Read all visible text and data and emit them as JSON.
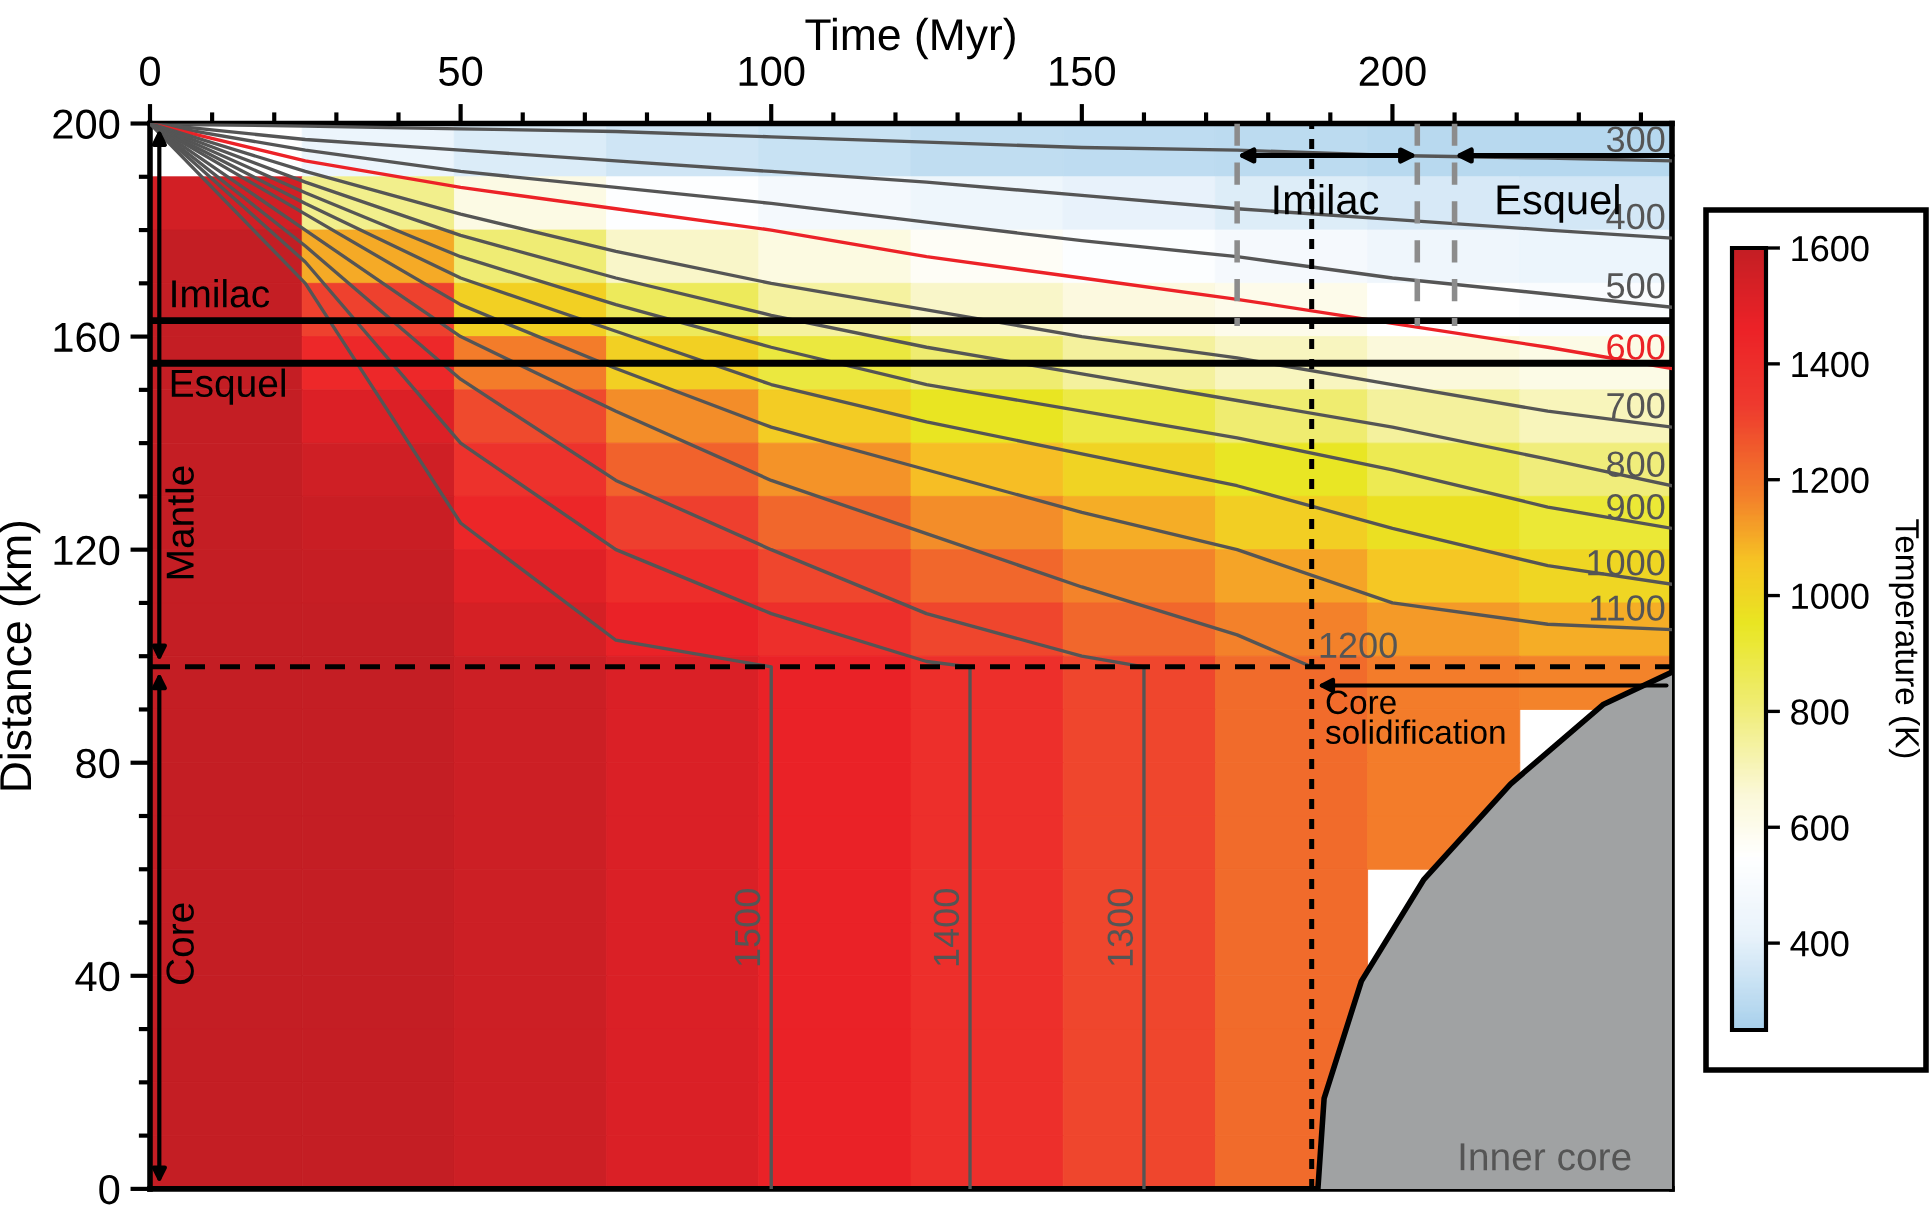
{
  "chart_data": {
    "type": "heatmap",
    "xlabel": "Time (Myr)",
    "ylabel": "Distance (km)",
    "clabel": "Temperature (K)",
    "xlim": [
      0,
      245
    ],
    "ylim": [
      0,
      200
    ],
    "xticks": [
      0,
      {
        "value": 10,
        "label": null
      },
      {
        "value": 20,
        "label": null
      },
      {
        "value": 30,
        "label": null
      },
      {
        "value": 40,
        "label": null
      },
      50,
      {
        "value": 60,
        "label": null
      },
      {
        "value": 70,
        "label": null
      },
      {
        "value": 80,
        "label": null
      },
      {
        "value": 90,
        "label": null
      },
      100,
      {
        "value": 110,
        "label": null
      },
      {
        "value": 120,
        "label": null
      },
      {
        "value": 130,
        "label": null
      },
      {
        "value": 140,
        "label": null
      },
      150,
      {
        "value": 160,
        "label": null
      },
      {
        "value": 170,
        "label": null
      },
      {
        "value": 180,
        "label": null
      },
      {
        "value": 190,
        "label": null
      },
      200,
      {
        "value": 210,
        "label": null
      },
      {
        "value": 220,
        "label": null
      },
      {
        "value": 230,
        "label": null
      },
      {
        "value": 240,
        "label": null
      }
    ],
    "yticks": [
      0,
      {
        "value": 10,
        "label": null
      },
      {
        "value": 20,
        "label": null
      },
      {
        "value": 30,
        "label": null
      },
      40,
      {
        "value": 50,
        "label": null
      },
      {
        "value": 60,
        "label": null
      },
      {
        "value": 70,
        "label": null
      },
      80,
      {
        "value": 90,
        "label": null
      },
      {
        "value": 100,
        "label": null
      },
      {
        "value": 110,
        "label": null
      },
      120,
      {
        "value": 130,
        "label": null
      },
      {
        "value": 140,
        "label": null
      },
      {
        "value": 150,
        "label": null
      },
      160,
      {
        "value": 170,
        "label": null
      },
      {
        "value": 180,
        "label": null
      },
      {
        "value": 190,
        "label": null
      },
      200
    ],
    "clim": [
      250,
      1600
    ],
    "cticks": [
      400,
      600,
      800,
      1000,
      1200,
      1400,
      1600
    ],
    "x": [
      12.25,
      36.75,
      61.25,
      85.75,
      110.25,
      134.75,
      159.25,
      183.75,
      208.25,
      232.75
    ],
    "y": [
      195,
      185,
      175,
      165,
      155,
      145,
      135,
      125,
      115,
      105,
      95,
      85,
      75,
      65,
      55,
      45,
      35,
      25,
      15,
      5
    ],
    "cells": [
      [
        null,
        430,
        380,
        350,
        330,
        310,
        305,
        300,
        290,
        285
      ],
      [
        1550,
        775,
        620,
        540,
        480,
        440,
        410,
        385,
        370,
        360
      ],
      [
        1600,
        1100,
        810,
        680,
        630,
        575,
        530,
        485,
        455,
        430
      ],
      [
        1600,
        1310,
        1020,
        855,
        745,
        680,
        640,
        605,
        550,
        515
      ],
      [
        1600,
        1430,
        1180,
        1020,
        900,
        815,
        750,
        695,
        650,
        615
      ],
      [
        1600,
        1520,
        1290,
        1150,
        1035,
        955,
        890,
        815,
        750,
        700
      ],
      [
        1600,
        1560,
        1370,
        1240,
        1140,
        1070,
        1010,
        950,
        870,
        800
      ],
      [
        1600,
        1580,
        1440,
        1320,
        1230,
        1150,
        1095,
        1030,
        970,
        915
      ],
      [
        1600,
        1590,
        1500,
        1400,
        1300,
        1230,
        1165,
        1110,
        1050,
        1000
      ],
      [
        1600,
        1600,
        1540,
        1470,
        1390,
        1300,
        1230,
        1170,
        1130,
        1095
      ],
      [
        1600,
        1600,
        1570,
        1525,
        1470,
        1390,
        1300,
        1220,
        1180,
        1165
      ],
      [
        1600,
        1600,
        1570,
        1525,
        1470,
        1390,
        1300,
        1220,
        1180,
        null
      ],
      [
        1600,
        1600,
        1570,
        1525,
        1470,
        1390,
        1300,
        1220,
        1180,
        null
      ],
      [
        1600,
        1600,
        1570,
        1525,
        1470,
        1390,
        1300,
        1220,
        1180,
        null
      ],
      [
        1600,
        1600,
        1570,
        1525,
        1470,
        1390,
        1300,
        1220,
        null,
        null
      ],
      [
        1600,
        1600,
        1570,
        1525,
        1470,
        1390,
        1300,
        1220,
        null,
        null
      ],
      [
        1600,
        1600,
        1570,
        1525,
        1470,
        1390,
        1300,
        1220,
        null,
        null
      ],
      [
        1600,
        1600,
        1570,
        1525,
        1470,
        1390,
        1300,
        1220,
        null,
        null
      ],
      [
        1600,
        1600,
        1570,
        1525,
        1470,
        1390,
        1300,
        1220,
        null,
        null
      ],
      [
        1600,
        1600,
        1570,
        1525,
        1470,
        1390,
        1300,
        1220,
        null,
        null
      ]
    ],
    "series": [
      {
        "type": "line",
        "name": "300",
        "color": "#555555",
        "x": [
          0,
          25,
          50,
          75,
          100,
          125,
          150,
          175,
          200,
          225,
          245
        ],
        "values": [
          200,
          199.5,
          199,
          198.5,
          197.5,
          196.5,
          195.5,
          195,
          194,
          193.5,
          193
        ]
      },
      {
        "type": "line",
        "name": "400",
        "color": "#555555",
        "x": [
          0,
          25,
          50,
          75,
          100,
          125,
          150,
          175,
          200,
          225,
          245
        ],
        "values": [
          200,
          197,
          195,
          193,
          191,
          189,
          186.5,
          184,
          182,
          180,
          178.5
        ]
      },
      {
        "type": "line",
        "name": "500",
        "color": "#555555",
        "x": [
          0,
          25,
          50,
          75,
          100,
          125,
          150,
          175,
          200,
          225,
          245
        ],
        "values": [
          200,
          195,
          191,
          188,
          185,
          181.5,
          178,
          175,
          171,
          168,
          165.5
        ]
      },
      {
        "type": "line",
        "name": "600",
        "color": "#ec2227",
        "x": [
          0,
          25,
          50,
          75,
          100,
          125,
          150,
          175,
          200,
          225,
          245
        ],
        "values": [
          200,
          193,
          188,
          184,
          180,
          175,
          171,
          167,
          162.5,
          158,
          154
        ]
      },
      {
        "type": "line",
        "name": "700",
        "color": "#555555",
        "x": [
          0,
          25,
          50,
          75,
          100,
          125,
          150,
          175,
          200,
          225,
          245
        ],
        "values": [
          200,
          191,
          183,
          176,
          170,
          165,
          160,
          156,
          151,
          146,
          143
        ]
      },
      {
        "type": "line",
        "name": "800",
        "color": "#555555",
        "x": [
          0,
          25,
          50,
          75,
          100,
          125,
          150,
          175,
          200,
          225,
          245
        ],
        "values": [
          200,
          189,
          179,
          171,
          164,
          158,
          153,
          148,
          143,
          137,
          132
        ]
      },
      {
        "type": "line",
        "name": "900",
        "color": "#555555",
        "x": [
          0,
          25,
          50,
          75,
          100,
          125,
          150,
          175,
          200,
          225,
          245
        ],
        "values": [
          200,
          187,
          175,
          166,
          158,
          151,
          146,
          141,
          135,
          128,
          124
        ]
      },
      {
        "type": "line",
        "name": "1000",
        "color": "#555555",
        "x": [
          0,
          25,
          50,
          75,
          100,
          125,
          150,
          175,
          200,
          225,
          245
        ],
        "values": [
          200,
          185,
          171,
          161,
          151,
          144,
          138,
          132,
          124,
          117,
          113.5
        ]
      },
      {
        "type": "line",
        "name": "1100",
        "color": "#555555",
        "x": [
          0,
          25,
          50,
          75,
          100,
          125,
          150,
          175,
          200,
          225,
          245
        ],
        "values": [
          200,
          183,
          166,
          154,
          143,
          135,
          127,
          120,
          110,
          106,
          105
        ]
      },
      {
        "type": "line",
        "name": "1200",
        "color": "#555555",
        "x": [
          0,
          25,
          50,
          75,
          100,
          125,
          150,
          175,
          187
        ],
        "values": [
          200,
          180,
          160,
          146,
          133,
          123,
          113,
          104,
          98
        ]
      },
      {
        "type": "line",
        "name": "1300",
        "color": "#555555",
        "x": [
          0,
          25,
          50,
          75,
          100,
          125,
          150,
          160,
          160
        ],
        "values": [
          200,
          177,
          152,
          133,
          120,
          108,
          100,
          98,
          0
        ]
      },
      {
        "type": "line",
        "name": "1400",
        "color": "#555555",
        "x": [
          0,
          25,
          50,
          75,
          100,
          125,
          132,
          132
        ],
        "values": [
          200,
          174,
          140,
          120,
          108,
          99,
          98,
          0
        ]
      },
      {
        "type": "line",
        "name": "1500",
        "color": "#555555",
        "x": [
          0,
          25,
          50,
          75,
          100,
          100
        ],
        "values": [
          200,
          170,
          125,
          103,
          98,
          0
        ]
      },
      {
        "type": "area",
        "name": "Inner core",
        "color": "#a0a2a3",
        "x": [
          188,
          189,
          195,
          205,
          219,
          234,
          245
        ],
        "values": [
          0,
          17,
          39,
          58,
          76,
          91,
          97
        ]
      }
    ],
    "ref_lines": [
      {
        "axis": "y",
        "value": 163,
        "label": "Imilac",
        "color": "#000000",
        "line_style": "solid"
      },
      {
        "axis": "y",
        "value": 155,
        "label": "Esquel",
        "color": "#000000",
        "line_style": "solid"
      },
      {
        "axis": "y",
        "value": 98,
        "color": "#000000",
        "line_style": "dashed"
      },
      {
        "axis": "x",
        "value": 187,
        "color": "#000000",
        "line_style": "dotted"
      },
      {
        "axis": "x",
        "value": 175,
        "color": "#8c8c8c",
        "line_style": "dashed"
      },
      {
        "axis": "x",
        "value": 204,
        "color": "#8c8c8c",
        "line_style": "dashed"
      },
      {
        "axis": "x",
        "value": 210,
        "color": "#8c8c8c",
        "line_style": "dashed"
      }
    ],
    "annotations": [
      "Mantle",
      "Core",
      "Core\nsolidification",
      "Imilac",
      "Esquel"
    ],
    "legend": false,
    "grid": false
  }
}
